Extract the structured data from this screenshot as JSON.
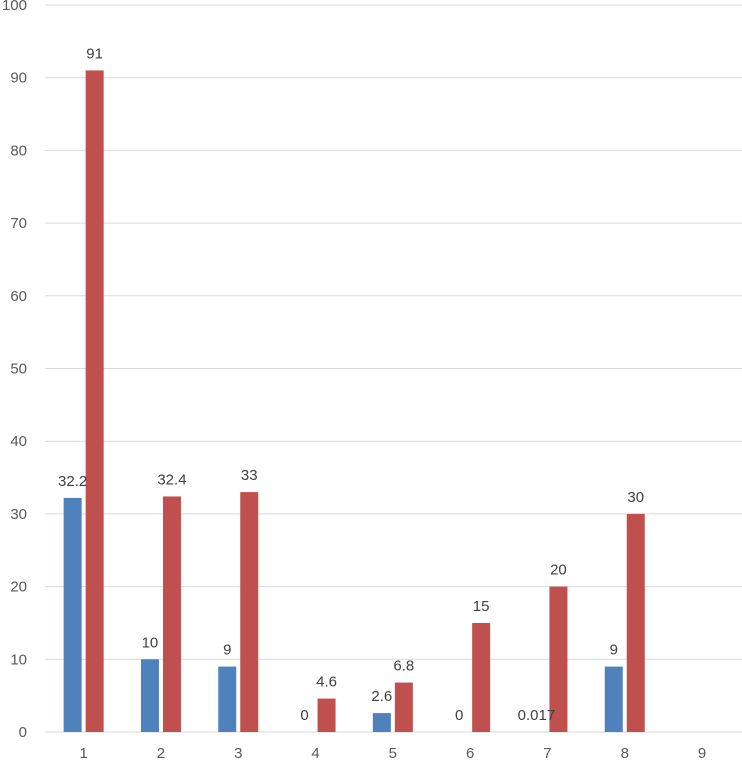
{
  "chart_data": {
    "type": "bar",
    "categories": [
      "1",
      "2",
      "3",
      "4",
      "5",
      "6",
      "7",
      "8",
      "9"
    ],
    "series": [
      {
        "color": "#4f81bd",
        "values": [
          32.2,
          10,
          9,
          0,
          2.6,
          0,
          0.017,
          9,
          null
        ],
        "labels": [
          "32.2",
          "10",
          "9",
          "0",
          "2.6",
          "0",
          "0.017",
          "9",
          ""
        ]
      },
      {
        "color": "#c0504d",
        "values": [
          91,
          32.4,
          33,
          4.6,
          6.8,
          15,
          20,
          30,
          null
        ],
        "labels": [
          "91",
          "32.4",
          "33",
          "4.6",
          "6.8",
          "15",
          "20",
          "30",
          ""
        ]
      }
    ],
    "yticks": [
      "0",
      "10",
      "20",
      "30",
      "40",
      "50",
      "60",
      "70",
      "80",
      "90",
      "100"
    ],
    "ylim": [
      0,
      100
    ],
    "grid": true,
    "legend": "none",
    "title": "",
    "xlabel": "",
    "ylabel": ""
  }
}
